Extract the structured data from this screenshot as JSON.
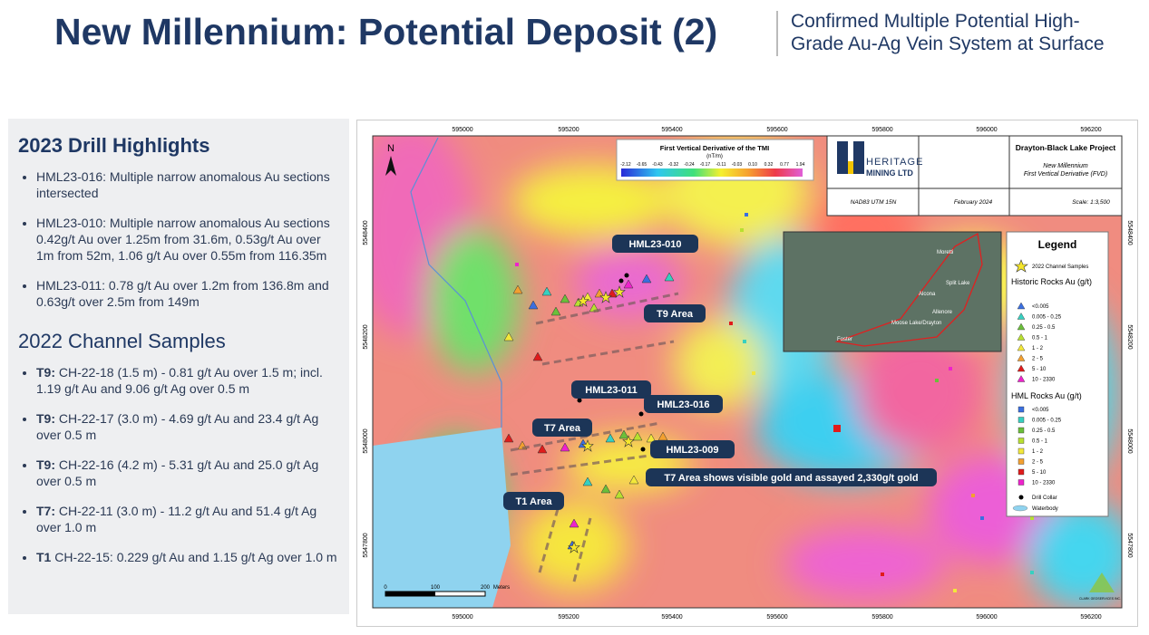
{
  "header": {
    "title": "New Millennium: Potential Deposit (2)",
    "subtitle_lines": [
      "Confirmed Multiple Potential High-",
      "Grade Au-Ag Vein System at Surface"
    ]
  },
  "panel": {
    "drill_heading": "2023 Drill Highlights",
    "drill_items": [
      "HML23-016: Multiple narrow anomalous Au sections intersected",
      "HML23-010: Multiple narrow anomalous Au sections 0.42g/t Au over 1.25m from 31.6m,  0.53g/t Au over 1m from 52m, 1.06 g/t Au over 0.55m from 116.35m",
      "HML23-011: 0.78 g/t Au over 1.2m from 136.8m and 0.63g/t over 2.5m from 149m"
    ],
    "channel_heading": "2022 Channel Samples",
    "channel_items": [
      {
        "area": "T9:",
        "text": " CH-22-18 (1.5 m) - 0.81 g/t Au over 1.5 m; incl. 1.19 g/t Au and 9.06 g/t Ag over 0.5 m"
      },
      {
        "area": "T9:",
        "text": " CH-22-17 (3.0 m) - 4.69 g/t Au and 23.4 g/t Ag over 0.5 m"
      },
      {
        "area": "T9:",
        "text": " CH-22-16 (4.2 m) - 5.31 g/t Au and 25.0 g/t Ag over 0.5 m"
      },
      {
        "area": "T7:",
        "text": " CH-22-11 (3.0 m) - 11.2 g/t Au and 51.4 g/t Ag over 1.0 m"
      },
      {
        "area": "T1",
        "text": " CH-22-15: 0.229 g/t Au and 1.15 g/t Ag over 1.0 m"
      }
    ]
  },
  "map": {
    "eastings": [
      "595000",
      "595200",
      "595400",
      "595600",
      "595800",
      "596000",
      "596200"
    ],
    "northings": [
      "5548400",
      "5548200",
      "5548000",
      "5547800"
    ],
    "north": "N",
    "colorbar": {
      "title": "First Vertical Derivative of the TMI",
      "unit": "(nT/m)",
      "ticks": [
        "-2.12",
        "-0.65",
        "-0.43",
        "-0.32",
        "-0.24",
        "-0.17",
        "-0.11",
        "-0.03",
        "0.10",
        "0.32",
        "0.77",
        "1.94"
      ]
    },
    "titleblock": {
      "company_1": "HERITAGE",
      "company_2": "MINING LTD",
      "project": "Drayton-Black Lake Project",
      "line_1": "New Millennium",
      "line_2": "First Vertical Derivative (FVD)",
      "datum": "NAD83 UTM 15N",
      "date": "February 2024",
      "scale": "Scale: 1:3,500"
    },
    "inset_labels": [
      "Moretti",
      "Split Lake",
      "Alcona",
      "Allenore",
      "Moose Lake/Drayton",
      "Foster"
    ],
    "callouts": [
      "HML23-010",
      "T9 Area",
      "HML23-011",
      "HML23-016",
      "T7 Area",
      "HML23-009",
      "T7 Area shows visible gold and assayed 2,330g/t gold",
      "T1 Area"
    ],
    "scalebar": [
      "0",
      "100",
      "200",
      "Meters"
    ],
    "credit": "CLARK GEOSERVICES INC.",
    "legend": {
      "title": "Legend",
      "channel": "2022 Channel Samples",
      "historic_heading": "Historic Rocks Au (g/t)",
      "hml_heading": "HML Rocks Au (g/t)",
      "classes": [
        "<0.005",
        "0.005 - 0.25",
        "0.25 - 0.5",
        "0.5 - 1",
        "1 - 2",
        "2 - 5",
        "5 - 10",
        "10 - 2330"
      ],
      "collar": "Drill Collar",
      "water": "Waterbody"
    }
  }
}
